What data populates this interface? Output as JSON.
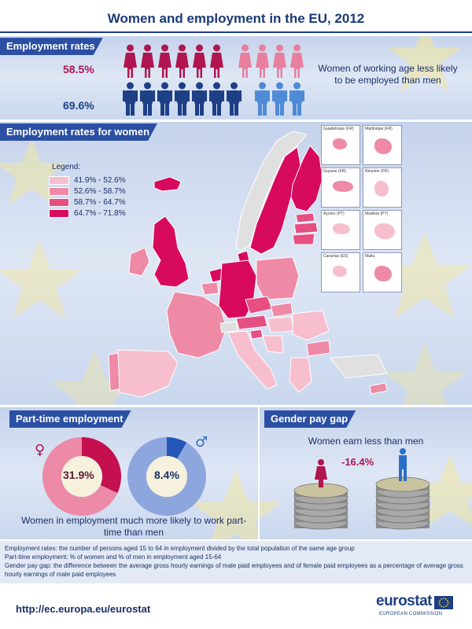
{
  "page": {
    "title": "Women and employment in the EU, 2012"
  },
  "employment": {
    "label": "Employment rates",
    "women_pct": "58.5%",
    "men_pct": "69.6%",
    "women_rate": 58.5,
    "men_rate": 69.6,
    "women_icons": {
      "dark": 6,
      "light": 4
    },
    "men_icons": {
      "dark": 7,
      "light": 3
    },
    "note": "Women of working age less likely to be employed than men",
    "colors": {
      "women_dark": "#b0154f",
      "women_light": "#e87f9e",
      "men_dark": "#1d3f85",
      "men_light": "#4f8ad6"
    }
  },
  "map": {
    "label": "Employment rates for women",
    "legend_title": "Legend:",
    "legend": [
      {
        "range": "41.9% - 52.6%",
        "color": "#f7bfcd"
      },
      {
        "range": "52.6% - 58.7%",
        "color": "#ee8aa6"
      },
      {
        "range": "58.7% - 64.7%",
        "color": "#e64f82"
      },
      {
        "range": "64.7% - 71.8%",
        "color": "#d80a5d"
      }
    ],
    "insets": [
      "Guadeloupe (FR)",
      "Martinique (FR)",
      "Guyane (FR)",
      "Réunion (FR)",
      "Açores (PT)",
      "Madeira (PT)",
      "Canarias (ES)",
      "Malta"
    ]
  },
  "part_time": {
    "label": "Part-time employment",
    "women_pct": "31.9%",
    "men_pct": "8.4%",
    "women_share": 31.9,
    "men_share": 8.4,
    "female_icon": "female-symbol-icon",
    "male_icon": "male-symbol-icon",
    "note": "Women in employment much more likely to work part-time than men"
  },
  "pay_gap": {
    "label": "Gender pay gap",
    "note": "Women earn less than men",
    "value": "-16.4%"
  },
  "definitions": [
    "Employment rates: the number of persons aged 15 to 64 in employment divided by the total population of the same age group",
    "Part-time employment: % of women and % of men in employment aged 15-64",
    "Gender pay gap: the difference between the average gross hourly earnings of male paid employees and of female paid employees as a percentage of average gross hourly earnings of male paid employees"
  ],
  "footer": {
    "url": "http://ec.europa.eu/eurostat",
    "logo_word": "eurostat",
    "logo_sub": "EUROPEAN COMMISSION"
  }
}
